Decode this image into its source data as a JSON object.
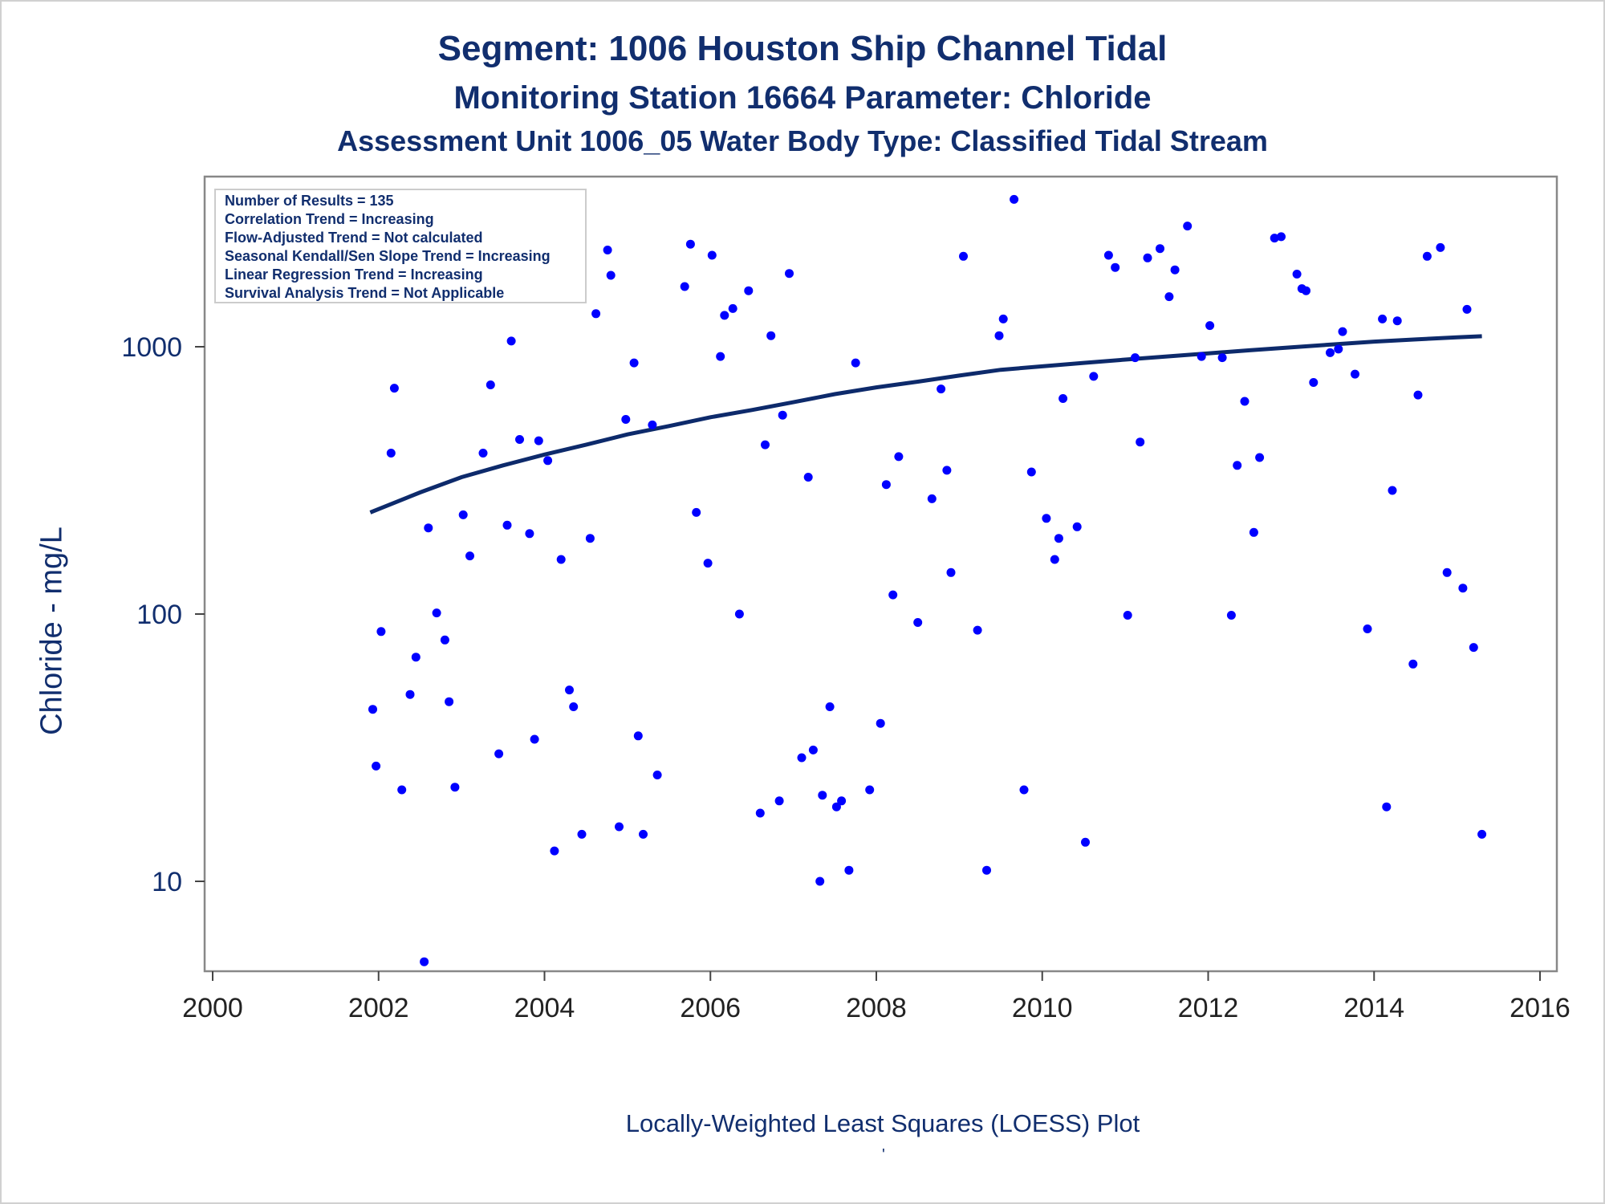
{
  "colors": {
    "text": "#112e6e",
    "points": "#0000ff",
    "trend": "#0d2a6b",
    "frame": "#888888"
  },
  "chart_data": {
    "type": "scatter",
    "title": "Segment: 1006  Houston Ship Channel Tidal",
    "subtitle": "Monitoring Station 16664 Parameter: Chloride",
    "subtitle2": "Assessment Unit 1006_05   Water Body Type: Classified Tidal Stream",
    "ylabel": "Chloride - mg/L",
    "xlabel": "",
    "footnote": "Locally-Weighted Least Squares (LOESS) Plot",
    "footnote_mark": "'",
    "y_scale": "log",
    "xlim": [
      2000,
      2016
    ],
    "ylim": [
      5,
      4000
    ],
    "x_ticks": [
      2000,
      2002,
      2004,
      2006,
      2008,
      2010,
      2012,
      2014,
      2016
    ],
    "y_ticks": [
      10,
      100,
      1000
    ],
    "grid": false,
    "legend_box": [
      "Number of Results = 135",
      "Correlation Trend = Increasing",
      "Flow-Adjusted Trend = Not calculated",
      "Seasonal Kendall/Sen Slope Trend = Increasing",
      "Linear Regression Trend = Increasing",
      "Survival Analysis Trend = Not Applicable"
    ],
    "legend_placement": "top-left",
    "points": [
      [
        2001.93,
        44
      ],
      [
        2001.97,
        27
      ],
      [
        2002.03,
        86
      ],
      [
        2002.15,
        400
      ],
      [
        2002.19,
        700
      ],
      [
        2002.28,
        22
      ],
      [
        2002.38,
        50
      ],
      [
        2002.45,
        69
      ],
      [
        2002.55,
        5
      ],
      [
        2002.6,
        210
      ],
      [
        2002.7,
        101
      ],
      [
        2002.8,
        80
      ],
      [
        2002.85,
        47
      ],
      [
        2002.92,
        22.5
      ],
      [
        2003.02,
        235
      ],
      [
        2003.1,
        165
      ],
      [
        2003.26,
        400
      ],
      [
        2003.35,
        720
      ],
      [
        2003.45,
        30
      ],
      [
        2003.55,
        215
      ],
      [
        2003.6,
        1050
      ],
      [
        2003.7,
        450
      ],
      [
        2003.82,
        200
      ],
      [
        2003.88,
        34
      ],
      [
        2003.93,
        445
      ],
      [
        2004.04,
        375
      ],
      [
        2004.12,
        13
      ],
      [
        2004.2,
        160
      ],
      [
        2004.3,
        52
      ],
      [
        2004.35,
        45
      ],
      [
        2004.45,
        15
      ],
      [
        2004.55,
        192
      ],
      [
        2004.62,
        1330
      ],
      [
        2004.76,
        2300
      ],
      [
        2004.8,
        1850
      ],
      [
        2004.9,
        16
      ],
      [
        2004.98,
        535
      ],
      [
        2005.08,
        870
      ],
      [
        2005.13,
        35
      ],
      [
        2005.19,
        15
      ],
      [
        2005.3,
        510
      ],
      [
        2005.36,
        25
      ],
      [
        2005.69,
        1680
      ],
      [
        2005.76,
        2420
      ],
      [
        2005.83,
        240
      ],
      [
        2005.97,
        155
      ],
      [
        2006.02,
        2200
      ],
      [
        2006.12,
        920
      ],
      [
        2006.17,
        1310
      ],
      [
        2006.27,
        1390
      ],
      [
        2006.35,
        100
      ],
      [
        2006.46,
        1620
      ],
      [
        2006.6,
        18
      ],
      [
        2006.66,
        430
      ],
      [
        2006.73,
        1100
      ],
      [
        2006.83,
        20
      ],
      [
        2006.87,
        555
      ],
      [
        2006.95,
        1880
      ],
      [
        2007.1,
        29
      ],
      [
        2007.18,
        325
      ],
      [
        2007.24,
        31
      ],
      [
        2007.32,
        10
      ],
      [
        2007.35,
        21
      ],
      [
        2007.44,
        45
      ],
      [
        2007.52,
        19
      ],
      [
        2007.58,
        20
      ],
      [
        2007.67,
        11
      ],
      [
        2007.75,
        870
      ],
      [
        2007.92,
        22
      ],
      [
        2008.05,
        39
      ],
      [
        2008.12,
        305
      ],
      [
        2008.2,
        118
      ],
      [
        2008.27,
        388
      ],
      [
        2008.5,
        93
      ],
      [
        2008.67,
        270
      ],
      [
        2008.78,
        695
      ],
      [
        2008.85,
        345
      ],
      [
        2008.9,
        143
      ],
      [
        2009.05,
        2180
      ],
      [
        2009.22,
        87
      ],
      [
        2009.33,
        11
      ],
      [
        2009.48,
        1100
      ],
      [
        2009.53,
        1270
      ],
      [
        2009.66,
        3560
      ],
      [
        2009.78,
        22
      ],
      [
        2009.87,
        340
      ],
      [
        2010.05,
        228
      ],
      [
        2010.15,
        160
      ],
      [
        2010.2,
        192
      ],
      [
        2010.25,
        640
      ],
      [
        2010.42,
        212
      ],
      [
        2010.52,
        14
      ],
      [
        2010.62,
        775
      ],
      [
        2010.8,
        2200
      ],
      [
        2010.88,
        1980
      ],
      [
        2011.03,
        99
      ],
      [
        2011.12,
        910
      ],
      [
        2011.18,
        440
      ],
      [
        2011.27,
        2150
      ],
      [
        2011.42,
        2330
      ],
      [
        2011.53,
        1540
      ],
      [
        2011.6,
        1940
      ],
      [
        2011.75,
        2830
      ],
      [
        2011.92,
        920
      ],
      [
        2012.02,
        1200
      ],
      [
        2012.17,
        910
      ],
      [
        2012.28,
        99
      ],
      [
        2012.35,
        360
      ],
      [
        2012.44,
        625
      ],
      [
        2012.55,
        202
      ],
      [
        2012.62,
        385
      ],
      [
        2012.8,
        2550
      ],
      [
        2012.88,
        2580
      ],
      [
        2013.07,
        1870
      ],
      [
        2013.13,
        1650
      ],
      [
        2013.18,
        1620
      ],
      [
        2013.27,
        735
      ],
      [
        2013.47,
        950
      ],
      [
        2013.57,
        980
      ],
      [
        2013.62,
        1140
      ],
      [
        2013.77,
        790
      ],
      [
        2013.92,
        88
      ],
      [
        2014.1,
        1270
      ],
      [
        2014.15,
        19
      ],
      [
        2014.22,
        290
      ],
      [
        2014.28,
        1250
      ],
      [
        2014.47,
        65
      ],
      [
        2014.53,
        660
      ],
      [
        2014.64,
        2180
      ],
      [
        2014.8,
        2350
      ],
      [
        2014.88,
        143
      ],
      [
        2015.07,
        125
      ],
      [
        2015.12,
        1380
      ],
      [
        2015.2,
        75
      ],
      [
        2015.3,
        15
      ]
    ],
    "loess": {
      "x": [
        2001.9,
        2002.5,
        2003,
        2003.5,
        2004,
        2004.5,
        2005,
        2005.5,
        2006,
        2006.5,
        2007,
        2007.5,
        2008,
        2008.5,
        2009,
        2009.5,
        2010,
        2010.5,
        2011,
        2011.5,
        2012,
        2012.5,
        2013,
        2013.5,
        2014,
        2014.5,
        2015,
        2015.3
      ],
      "y": [
        240,
        285,
        325,
        360,
        395,
        430,
        470,
        505,
        545,
        580,
        620,
        665,
        705,
        740,
        780,
        820,
        845,
        870,
        895,
        920,
        945,
        970,
        995,
        1020,
        1045,
        1065,
        1085,
        1095
      ]
    }
  }
}
